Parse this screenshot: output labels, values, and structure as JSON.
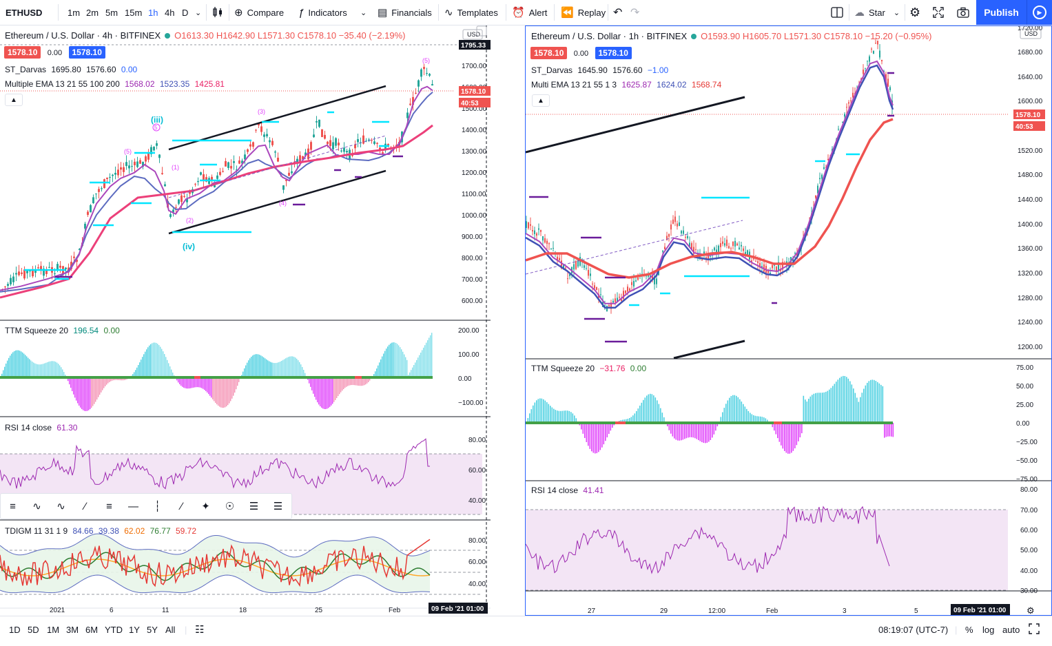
{
  "toolbar": {
    "symbol": "ETHUSD",
    "intervals": [
      "1m",
      "2m",
      "5m",
      "15m",
      "1h",
      "4h",
      "D"
    ],
    "active_interval": "1h",
    "compare": "Compare",
    "indicators": "Indicators",
    "financials": "Financials",
    "templates": "Templates",
    "alert": "Alert",
    "replay": "Replay",
    "star": "Star",
    "publish": "Publish"
  },
  "left": {
    "title": "Ethereum / U.S. Dollar · 4h · BITFINEX",
    "ohlc": "O1613.30 H1642.90 L1571.30 C1578.10 −35.40 (−2.19%)",
    "bid": "1578.10",
    "spread": "0.00",
    "ask": "1578.10",
    "darvas_label": "ST_Darvas",
    "darvas_vals": [
      "1695.80",
      "1576.60",
      "0.00"
    ],
    "ema_label": "Multiple EMA 13 21 55 100 200",
    "ema_vals": [
      "1568.02",
      "1523.35",
      "1425.81"
    ],
    "usd": "USD",
    "price_axis": [
      "1700.00",
      "1600.00",
      "1500.00",
      "1400.00",
      "1300.00",
      "1200.00",
      "1100.00",
      "1000.00",
      "900.00",
      "800.00",
      "700.00",
      "600.00"
    ],
    "top_price": "1795.33",
    "last_price": "1578.10",
    "countdown": "40:53",
    "squeeze_label": "TTM Squeeze 20",
    "squeeze_vals": [
      "196.54",
      "0.00"
    ],
    "squeeze_axis": [
      "200.00",
      "100.00",
      "0.00",
      "−100.00"
    ],
    "rsi_label": "RSI 14 close",
    "rsi_val": "61.30",
    "rsi_axis": [
      "80.00",
      "60.00",
      "40.00"
    ],
    "tdi_label": "TDIGM 11 31 1 9",
    "tdi_vals": [
      "84.66",
      "39.38",
      "62.02",
      "76.77",
      "59.72"
    ],
    "tdi_axis": [
      "80.00",
      "60.00",
      "40.00"
    ],
    "time_axis": [
      "2021",
      "6",
      "11",
      "18",
      "25",
      "Feb"
    ],
    "time_badge": "09 Feb '21   01:00",
    "wave_labels": [
      "(iii)",
      "(iv)",
      "(1)",
      "(2)",
      "(3)",
      "(4)",
      "(5)",
      "(5)",
      "5"
    ]
  },
  "right": {
    "title": "Ethereum / U.S. Dollar · 1h · BITFINEX",
    "ohlc": "O1593.90 H1605.70 L1571.30 C1578.10 −15.20 (−0.95%)",
    "bid": "1578.10",
    "spread": "0.00",
    "ask": "1578.10",
    "darvas_label": "ST_Darvas",
    "darvas_vals": [
      "1645.90",
      "1576.60",
      "−1.00"
    ],
    "ema_label": "Multi EMA 13 21 55 1 3",
    "ema_vals": [
      "1625.87",
      "1624.02",
      "1568.74"
    ],
    "usd": "USD",
    "price_axis": [
      "1720.00",
      "1680.00",
      "1640.00",
      "1600.00",
      "1560.00",
      "1520.00",
      "1480.00",
      "1440.00",
      "1400.00",
      "1360.00",
      "1320.00",
      "1280.00",
      "1240.00",
      "1200.00"
    ],
    "last_price": "1578.10",
    "countdown": "40:53",
    "squeeze_label": "TTM Squeeze 20",
    "squeeze_vals": [
      "−31.76",
      "0.00"
    ],
    "squeeze_axis": [
      "75.00",
      "50.00",
      "25.00",
      "0.00",
      "−25.00",
      "−50.00",
      "−75.00"
    ],
    "rsi_label": "RSI 14 close",
    "rsi_val": "41.41",
    "rsi_axis": [
      "80.00",
      "70.00",
      "60.00",
      "50.00",
      "40.00",
      "30.00"
    ],
    "time_axis": [
      "27",
      "29",
      "12:00",
      "Feb",
      "3",
      "5"
    ],
    "time_badge": "09 Feb '21   01:00"
  },
  "bottom": {
    "ranges": [
      "1D",
      "5D",
      "1M",
      "3M",
      "6M",
      "YTD",
      "1Y",
      "5Y",
      "All"
    ],
    "clock": "08:19:07 (UTC-7)",
    "percent": "%",
    "log": "log",
    "auto": "auto"
  },
  "colors": {
    "accent": "#2962ff",
    "up": "#26a69a",
    "down": "#ef5350",
    "ema_fast": "#ab47bc",
    "ema_mid": "#5c6bc0",
    "ema_slow": "#ec407a",
    "darvas": "#00e5ff",
    "rsi": "#9c27b0"
  }
}
